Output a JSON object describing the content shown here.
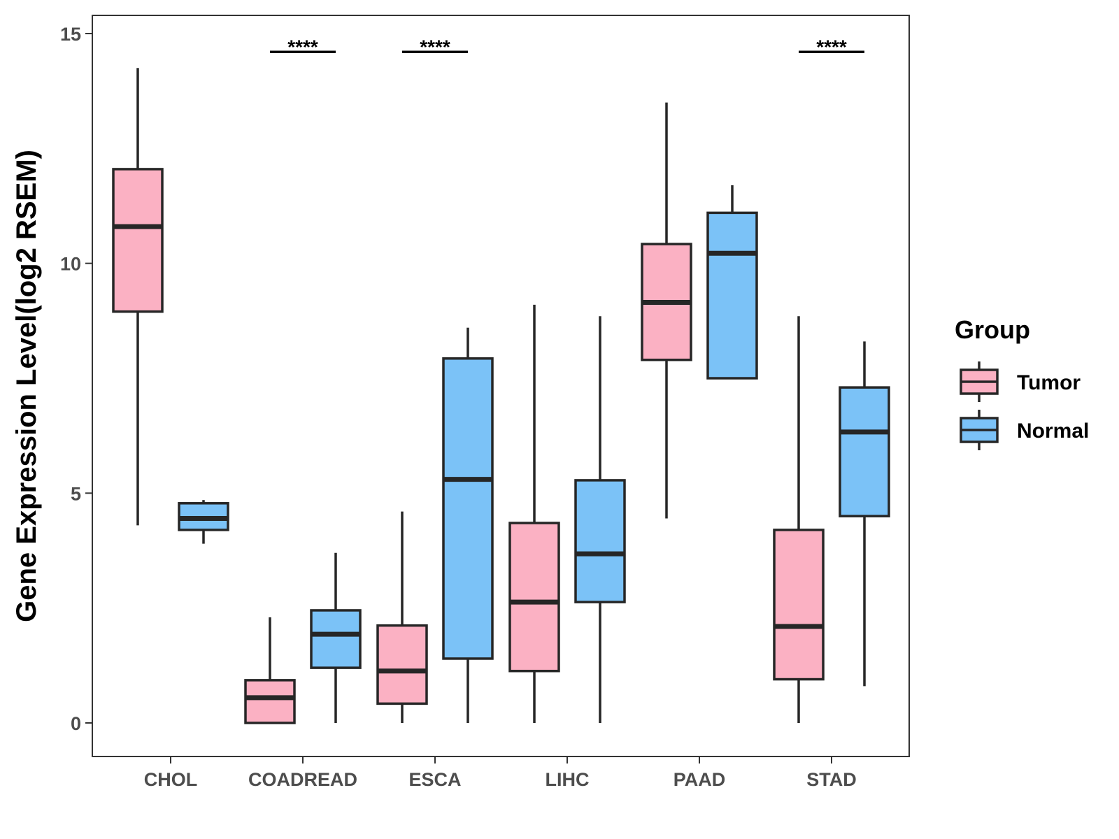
{
  "chart_data": {
    "type": "boxplot",
    "title": "",
    "xlabel": "",
    "ylabel": "Gene Expression Level(log2 RSEM)",
    "ylim": [
      -0.7,
      15.4
    ],
    "yticks": [
      0,
      5,
      10,
      15
    ],
    "grid": false,
    "legend_position": "right",
    "categories": [
      "CHOL",
      "COADREAD",
      "ESCA",
      "LIHC",
      "PAAD",
      "STAD"
    ],
    "legend": {
      "title": "Group",
      "items": [
        {
          "name": "Tumor",
          "color": "#fbb1c3"
        },
        {
          "name": "Normal",
          "color": "#7bc2f7"
        }
      ]
    },
    "series": [
      {
        "name": "Tumor",
        "color": "#fbb1c3",
        "boxes": [
          {
            "category": "CHOL",
            "min": 4.3,
            "q1": 8.95,
            "median": 10.8,
            "q3": 12.05,
            "max": 14.25
          },
          {
            "category": "COADREAD",
            "min": 0.0,
            "q1": 0.0,
            "median": 0.55,
            "q3": 0.93,
            "max": 2.3
          },
          {
            "category": "ESCA",
            "min": 0.0,
            "q1": 0.42,
            "median": 1.13,
            "q3": 2.12,
            "max": 4.6
          },
          {
            "category": "LIHC",
            "min": 0.0,
            "q1": 1.13,
            "median": 2.63,
            "q3": 4.35,
            "max": 9.1
          },
          {
            "category": "PAAD",
            "min": 4.45,
            "q1": 7.9,
            "median": 9.15,
            "q3": 10.42,
            "max": 13.5
          },
          {
            "category": "STAD",
            "min": 0.0,
            "q1": 0.95,
            "median": 2.1,
            "q3": 4.2,
            "max": 8.85
          }
        ]
      },
      {
        "name": "Normal",
        "color": "#7bc2f7",
        "boxes": [
          {
            "category": "CHOL",
            "min": 3.9,
            "q1": 4.2,
            "median": 4.45,
            "q3": 4.78,
            "max": 4.85
          },
          {
            "category": "COADREAD",
            "min": 0.0,
            "q1": 1.2,
            "median": 1.93,
            "q3": 2.45,
            "max": 3.7
          },
          {
            "category": "ESCA",
            "min": 0.0,
            "q1": 1.4,
            "median": 5.3,
            "q3": 7.93,
            "max": 8.6
          },
          {
            "category": "LIHC",
            "min": 0.0,
            "q1": 2.63,
            "median": 3.68,
            "q3": 5.28,
            "max": 8.85
          },
          {
            "category": "PAAD",
            "min": 7.5,
            "q1": 7.5,
            "median": 10.22,
            "q3": 11.1,
            "max": 11.7
          },
          {
            "category": "STAD",
            "min": 0.8,
            "q1": 4.5,
            "median": 6.33,
            "q3": 7.3,
            "max": 8.3
          }
        ]
      }
    ],
    "annotations": [
      {
        "category": "COADREAD",
        "text": "****",
        "y": 14.6
      },
      {
        "category": "ESCA",
        "text": "****",
        "y": 14.6
      },
      {
        "category": "STAD",
        "text": "****",
        "y": 14.6
      }
    ]
  }
}
